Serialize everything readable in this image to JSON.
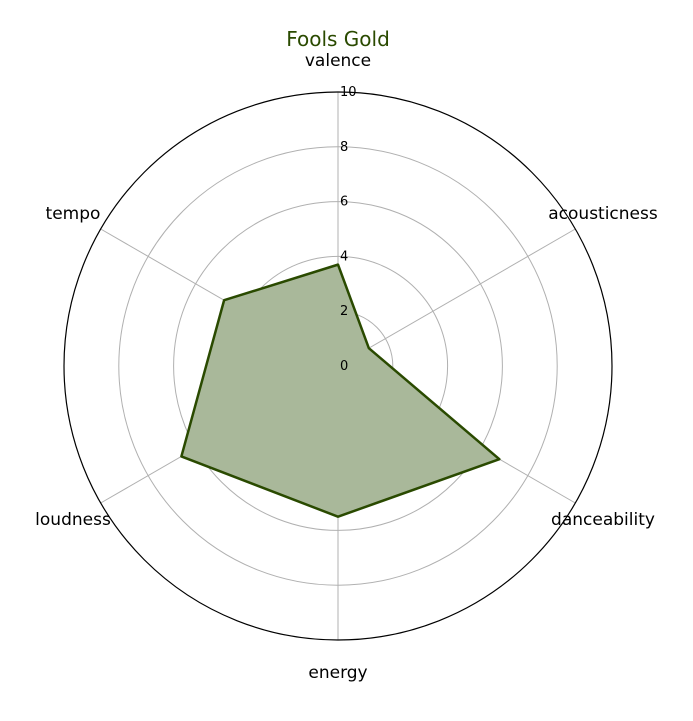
{
  "chart_data": {
    "type": "radar",
    "title": "Fools Gold",
    "categories": [
      "valence",
      "acousticness",
      "danceability",
      "energy",
      "loudness",
      "tempo"
    ],
    "series": [
      {
        "name": "Fools Gold",
        "values": [
          3.7,
          1.3,
          6.8,
          5.5,
          6.6,
          4.8
        ]
      }
    ],
    "rlim": [
      0,
      10
    ],
    "rticks": [
      "0",
      "2",
      "4",
      "6",
      "8",
      "10"
    ],
    "grid": true,
    "colors": {
      "title": "#2a4a00",
      "line": "#2a4a00",
      "fill": "#a9b89a",
      "grid": "#b0b0b0",
      "outer": "#000000"
    }
  }
}
